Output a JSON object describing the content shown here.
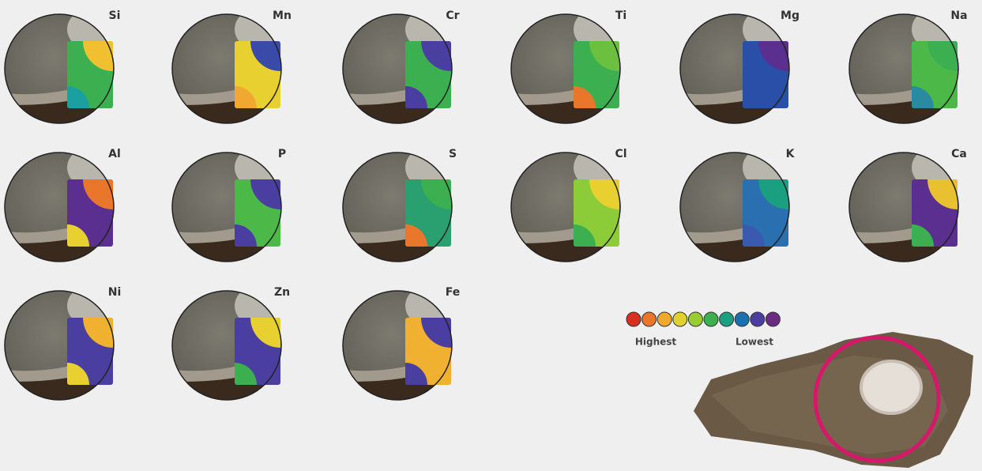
{
  "elements": [
    "Si",
    "Mn",
    "Cr",
    "Ti",
    "Mg",
    "Na",
    "Al",
    "P",
    "S",
    "Cl",
    "K",
    "Ca",
    "Ni",
    "Zn",
    "Fe"
  ],
  "legend": {
    "high": "Highest",
    "low": "Lowest"
  }
}
